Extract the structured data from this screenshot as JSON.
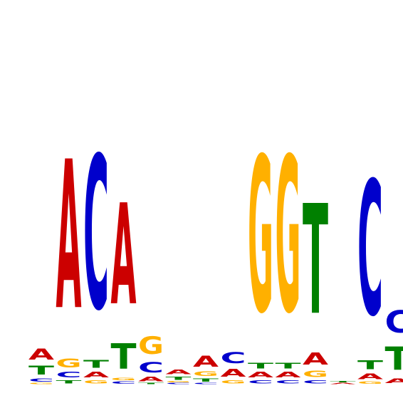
{
  "chart_data": {
    "type": "sequence-logo",
    "title": "",
    "xlabel": "",
    "ylabel": "",
    "ylim": [
      0,
      2
    ],
    "colors": {
      "A": "#cc0000",
      "C": "#0000cc",
      "G": "#ffb000",
      "T": "#008000"
    },
    "positions": [
      {
        "index": 1,
        "letters": [
          [
            "G",
            0.01
          ],
          [
            "C",
            0.03
          ],
          [
            "T",
            0.08
          ],
          [
            "A",
            0.1
          ]
        ]
      },
      {
        "index": 2,
        "letters": [
          [
            "T",
            0.03
          ],
          [
            "C",
            0.05
          ],
          [
            "G",
            0.08
          ],
          [
            "A",
            1.34
          ]
        ]
      },
      {
        "index": 3,
        "letters": [
          [
            "G",
            0.03
          ],
          [
            "A",
            0.05
          ],
          [
            "T",
            0.07
          ],
          [
            "C",
            1.38
          ]
        ]
      },
      {
        "index": 4,
        "letters": [
          [
            "C",
            0.02
          ],
          [
            "G",
            0.02
          ],
          [
            "T",
            0.23
          ],
          [
            "A",
            0.91
          ]
        ]
      },
      {
        "index": 5,
        "letters": [
          [
            "T",
            0.01
          ],
          [
            "A",
            0.04
          ],
          [
            "C",
            0.09
          ],
          [
            "G",
            0.16
          ]
        ]
      },
      {
        "index": 6,
        "letters": [
          [
            "C",
            0.01
          ],
          [
            "G",
            0.01
          ],
          [
            "T",
            0.03
          ],
          [
            "A",
            0.04
          ]
        ]
      },
      {
        "index": 7,
        "letters": [
          [
            "C",
            0.01
          ],
          [
            "T",
            0.03
          ],
          [
            "G",
            0.04
          ],
          [
            "A",
            0.1
          ]
        ]
      },
      {
        "index": 8,
        "letters": [
          [
            "G",
            0.03
          ],
          [
            "A",
            0.07
          ],
          [
            "C",
            0.1
          ]
        ]
      },
      {
        "index": 9,
        "letters": [
          [
            "C",
            0.03
          ],
          [
            "A",
            0.05
          ],
          [
            "T",
            0.05
          ],
          [
            "G",
            1.4
          ]
        ]
      },
      {
        "index": 10,
        "letters": [
          [
            "C",
            0.03
          ],
          [
            "A",
            0.05
          ],
          [
            "T",
            0.05
          ],
          [
            "G",
            1.4
          ]
        ]
      },
      {
        "index": 11,
        "letters": [
          [
            "C",
            0.03
          ],
          [
            "G",
            0.06
          ],
          [
            "A",
            0.11
          ],
          [
            "T",
            0.99
          ]
        ]
      },
      {
        "index": 12,
        "letters": [
          [
            "A",
            0.01
          ],
          [
            "T",
            0.01
          ]
        ]
      },
      {
        "index": 13,
        "letters": [
          [
            "G",
            0.02
          ],
          [
            "A",
            0.05
          ],
          [
            "T",
            0.08
          ],
          [
            "C",
            1.21
          ]
        ]
      },
      {
        "index": 14,
        "letters": [
          [
            "A",
            0.04
          ],
          [
            "T",
            0.21
          ],
          [
            "C",
            0.2
          ]
        ]
      }
    ]
  }
}
